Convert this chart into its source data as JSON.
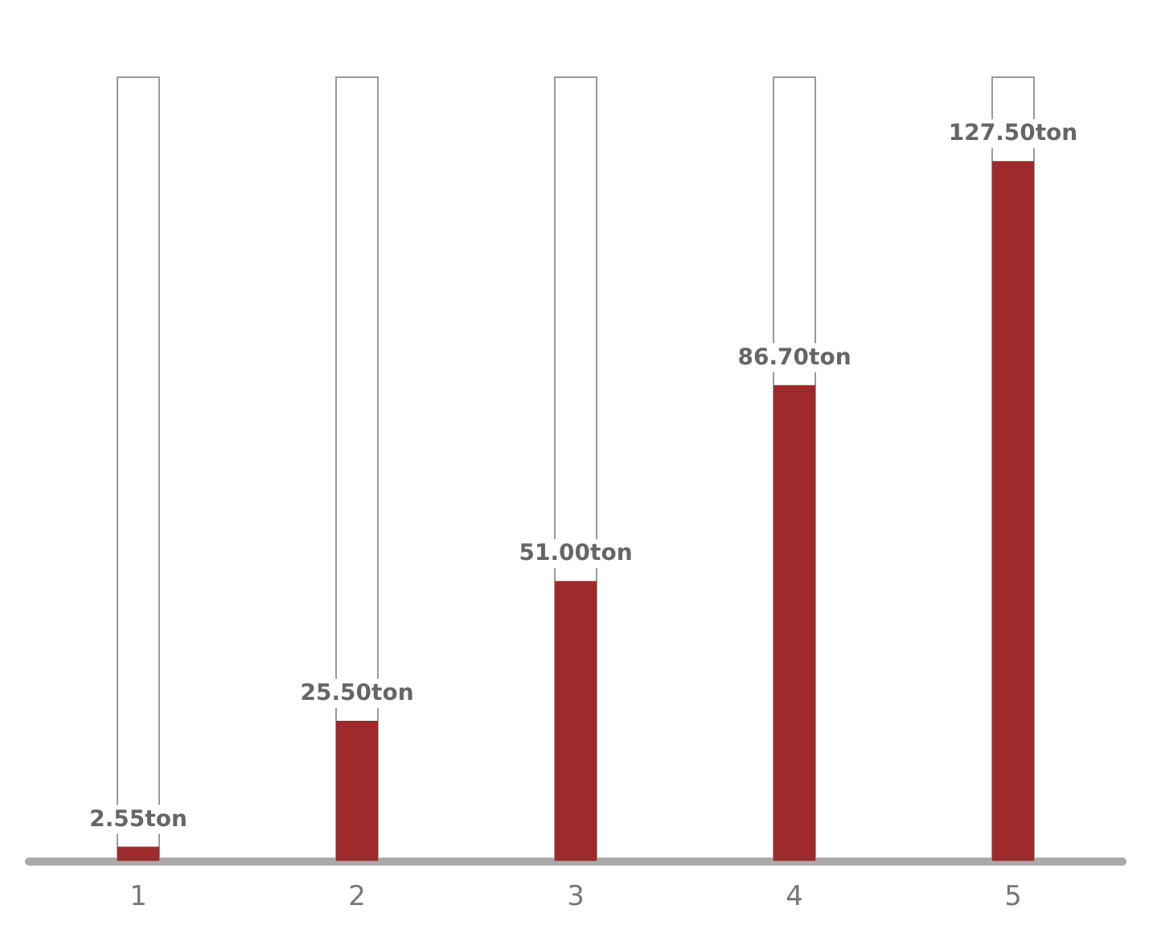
{
  "chart_data": {
    "type": "bar",
    "categories": [
      "1",
      "2",
      "3",
      "4",
      "5"
    ],
    "values": [
      2.55,
      25.5,
      51,
      86.7,
      127.5
    ],
    "value_labels": [
      "2.55ton",
      "25.50ton",
      "51.00ton",
      "86.70ton",
      "127.50ton"
    ],
    "color": "#9e2a2b"
  }
}
